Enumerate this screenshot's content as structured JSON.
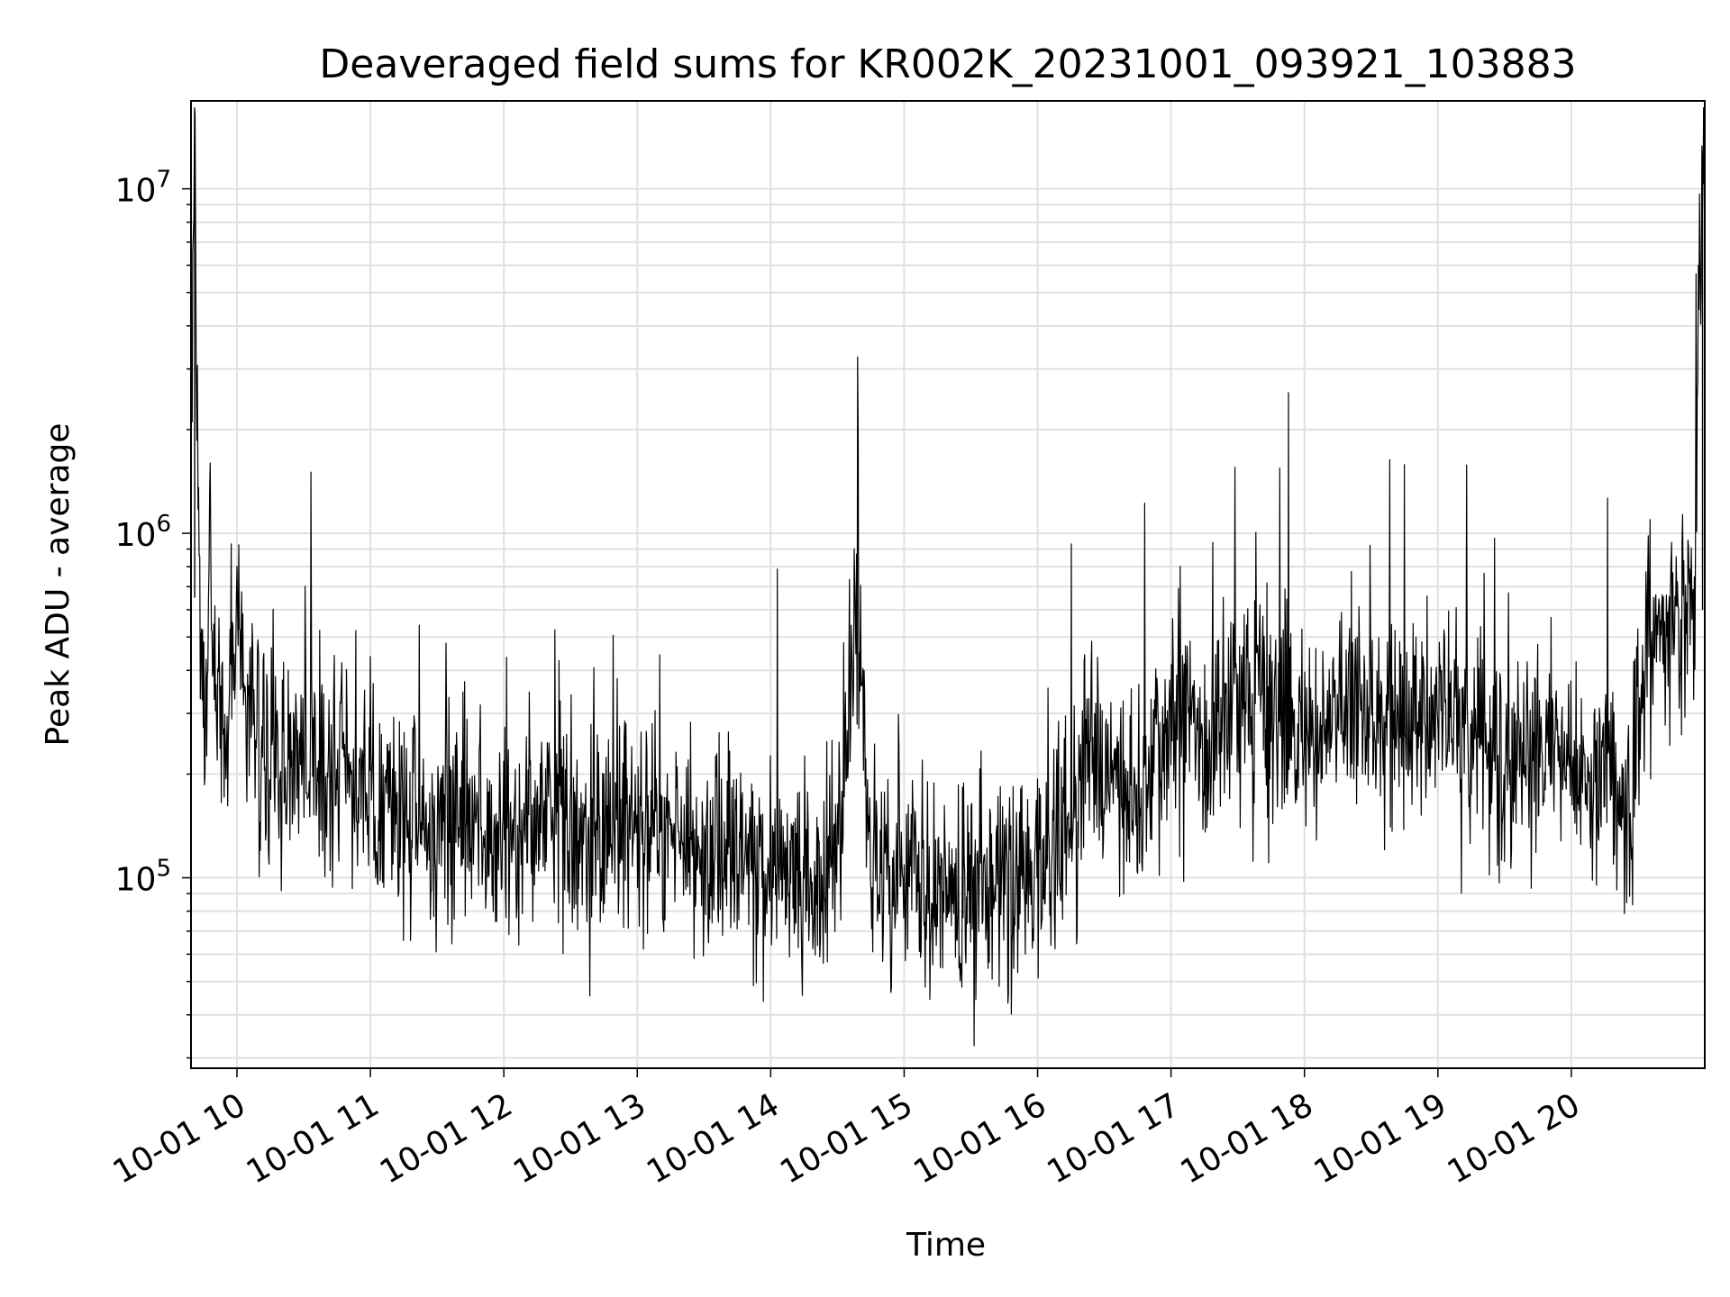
{
  "chart_data": {
    "type": "line",
    "title": "Deaveraged field sums for KR002K_20231001_093921_103883",
    "xlabel": "Time",
    "ylabel": "Peak ADU - average",
    "yscale": "log",
    "x_range": [
      "2023-10-01 09:39:21",
      "2023-10-01 21:00:00"
    ],
    "ylim": [
      28000,
      18000000
    ],
    "x_ticks": [
      {
        "value": "2023-10-01 10:00",
        "label": "10-01 10"
      },
      {
        "value": "2023-10-01 11:00",
        "label": "10-01 11"
      },
      {
        "value": "2023-10-01 12:00",
        "label": "10-01 12"
      },
      {
        "value": "2023-10-01 13:00",
        "label": "10-01 13"
      },
      {
        "value": "2023-10-01 14:00",
        "label": "10-01 14"
      },
      {
        "value": "2023-10-01 15:00",
        "label": "10-01 15"
      },
      {
        "value": "2023-10-01 16:00",
        "label": "10-01 16"
      },
      {
        "value": "2023-10-01 17:00",
        "label": "10-01 17"
      },
      {
        "value": "2023-10-01 18:00",
        "label": "10-01 18"
      },
      {
        "value": "2023-10-01 19:00",
        "label": "10-01 19"
      },
      {
        "value": "2023-10-01 20:00",
        "label": "10-01 20"
      }
    ],
    "y_ticks": [
      {
        "value": 100000,
        "base": "10",
        "exp": "5"
      },
      {
        "value": 1000000,
        "base": "10",
        "exp": "6"
      },
      {
        "value": 10000000,
        "base": "10",
        "exp": "7"
      }
    ],
    "grid": true,
    "line_color": "#000000",
    "grid_color": "#e0e0e0",
    "series": [
      {
        "x": [
          "2023-10-01 09:39",
          "2023-10-01 09:41",
          "2023-10-01 09:43",
          "2023-10-01 09:45",
          "2023-10-01 09:48",
          "2023-10-01 09:50",
          "2023-10-01 09:55",
          "2023-10-01 09:58",
          "2023-10-01 10:00",
          "2023-10-01 10:05",
          "2023-10-01 10:10",
          "2023-10-01 10:15",
          "2023-10-01 10:20",
          "2023-10-01 10:25",
          "2023-10-01 10:30",
          "2023-10-01 10:40",
          "2023-10-01 10:50",
          "2023-10-01 11:00",
          "2023-10-01 11:10",
          "2023-10-01 11:20",
          "2023-10-01 11:30",
          "2023-10-01 11:45",
          "2023-10-01 12:00",
          "2023-10-01 12:15",
          "2023-10-01 12:30",
          "2023-10-01 12:45",
          "2023-10-01 12:55",
          "2023-10-01 13:00",
          "2023-10-01 13:15",
          "2023-10-01 13:30",
          "2023-10-01 13:45",
          "2023-10-01 14:00",
          "2023-10-01 14:15",
          "2023-10-01 14:30",
          "2023-10-01 14:38",
          "2023-10-01 14:45",
          "2023-10-01 15:00",
          "2023-10-01 15:15",
          "2023-10-01 15:30",
          "2023-10-01 15:45",
          "2023-10-01 16:00",
          "2023-10-01 16:15",
          "2023-10-01 16:25",
          "2023-10-01 16:35",
          "2023-10-01 16:45",
          "2023-10-01 16:55",
          "2023-10-01 17:05",
          "2023-10-01 17:15",
          "2023-10-01 17:30",
          "2023-10-01 17:45",
          "2023-10-01 18:00",
          "2023-10-01 18:15",
          "2023-10-01 18:30",
          "2023-10-01 18:45",
          "2023-10-01 19:00",
          "2023-10-01 19:15",
          "2023-10-01 19:30",
          "2023-10-01 19:45",
          "2023-10-01 20:00",
          "2023-10-01 20:15",
          "2023-10-01 20:25",
          "2023-10-01 20:35",
          "2023-10-01 20:45",
          "2023-10-01 20:55",
          "2023-10-01 20:59"
        ],
        "values": [
          700000,
          13000000,
          500000,
          300000,
          900000,
          400000,
          250000,
          350000,
          600000,
          300000,
          250000,
          220000,
          200000,
          230000,
          210000,
          190000,
          200000,
          170000,
          150000,
          160000,
          150000,
          140000,
          150000,
          145000,
          140000,
          130000,
          150000,
          160000,
          140000,
          120000,
          115000,
          105000,
          100000,
          110000,
          600000,
          110000,
          95000,
          100000,
          95000,
          100000,
          110000,
          150000,
          250000,
          200000,
          150000,
          250000,
          300000,
          220000,
          350000,
          300000,
          250000,
          320000,
          300000,
          280000,
          300000,
          230000,
          200000,
          220000,
          230000,
          220000,
          150000,
          450000,
          550000,
          600000,
          12000000
        ]
      }
    ]
  }
}
